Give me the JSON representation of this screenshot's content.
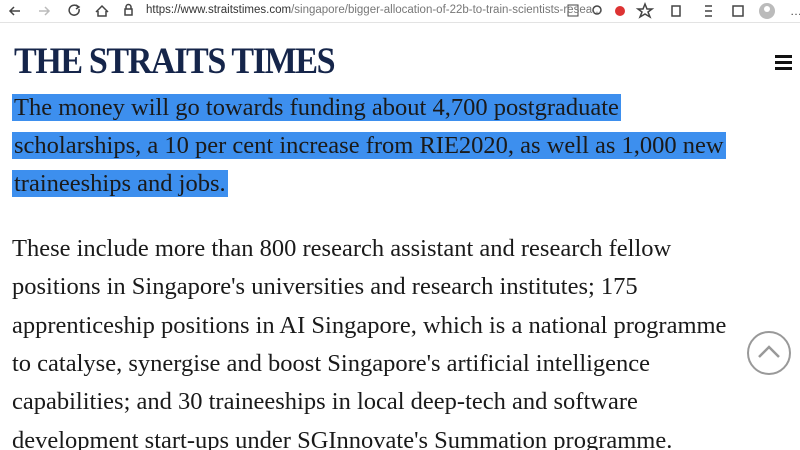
{
  "browser": {
    "url_host": "https://www.straitstimes.com",
    "url_path": "/singapore/bigger-allocation-of-22b-to-train-scientists-resea..."
  },
  "header": {
    "title": "THE STRAITS TIMES"
  },
  "article": {
    "highlighted_lines": [
      "The money will go towards funding about 4,700 postgraduate",
      "scholarships, a 10 per cent increase from RIE2020, as well as 1,000 new",
      "traineeships and jobs."
    ],
    "paragraph_lines": [
      "These include more than 800 research assistant and research fellow",
      "positions in Singapore's universities and research institutes; 175",
      "apprenticeship positions in AI Singapore, which is a national programme",
      "to catalyse, synergise and boost Singapore's artificial intelligence",
      "capabilities; and 30 traineeships in local deep-tech and software",
      "development start-ups under SGInnovate's Summation programme."
    ]
  }
}
